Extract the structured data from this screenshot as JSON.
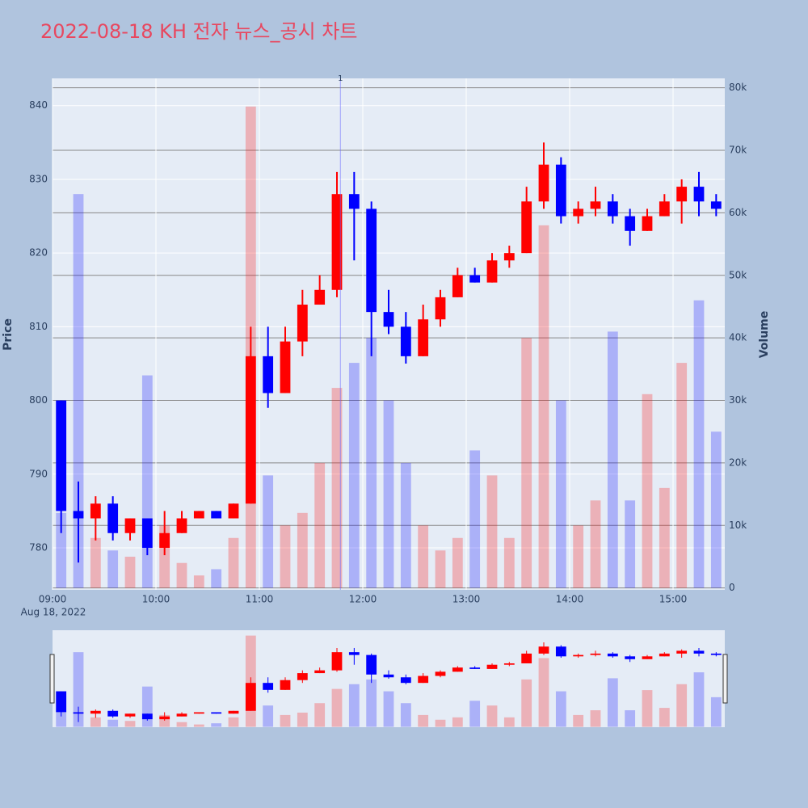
{
  "chart_data": {
    "type": "candlestick",
    "title": "2022-08-18 KH 전자 뉴스_공시 차트",
    "y_label": "Price",
    "y2_label": "Volume",
    "x_date_label": "Aug 18, 2022",
    "x": [
      "09:00",
      "09:10",
      "09:20",
      "09:30",
      "09:40",
      "09:50",
      "10:00",
      "10:10",
      "10:20",
      "10:30",
      "10:40",
      "10:50",
      "11:00",
      "11:10",
      "11:20",
      "11:30",
      "11:40",
      "11:50",
      "12:00",
      "12:10",
      "12:20",
      "12:30",
      "12:40",
      "12:50",
      "13:00",
      "13:10",
      "13:20",
      "13:30",
      "13:40",
      "13:50",
      "14:00",
      "14:10",
      "14:20",
      "14:30",
      "14:40",
      "14:50",
      "15:00",
      "15:10",
      "15:20"
    ],
    "open": [
      800,
      785,
      784,
      786,
      782,
      784,
      780,
      782,
      784,
      785,
      784,
      786,
      806,
      801,
      808,
      813,
      815,
      828,
      826,
      812,
      810,
      806,
      811,
      814,
      817,
      816,
      819,
      820,
      827,
      832,
      825,
      826,
      827,
      825,
      823,
      825,
      827,
      829,
      827
    ],
    "high": [
      800,
      789,
      787,
      787,
      784,
      784,
      785,
      785,
      785,
      785,
      786,
      810,
      810,
      810,
      815,
      817,
      831,
      831,
      827,
      815,
      812,
      813,
      815,
      818,
      818,
      820,
      821,
      829,
      835,
      833,
      827,
      829,
      828,
      826,
      826,
      828,
      830,
      831,
      828
    ],
    "low": [
      782,
      778,
      781,
      781,
      781,
      779,
      779,
      782,
      784,
      784,
      784,
      786,
      799,
      801,
      806,
      813,
      814,
      819,
      806,
      809,
      805,
      806,
      810,
      814,
      816,
      816,
      818,
      820,
      826,
      824,
      824,
      825,
      824,
      821,
      823,
      825,
      824,
      825,
      825
    ],
    "close": [
      785,
      784,
      786,
      782,
      784,
      780,
      782,
      784,
      785,
      784,
      786,
      806,
      801,
      808,
      813,
      815,
      828,
      826,
      812,
      810,
      806,
      811,
      814,
      817,
      816,
      819,
      820,
      827,
      832,
      825,
      826,
      827,
      825,
      823,
      825,
      827,
      829,
      827,
      826
    ],
    "volume": [
      12000,
      63000,
      8000,
      6000,
      5000,
      34000,
      10000,
      4000,
      2000,
      3000,
      8000,
      77000,
      18000,
      10000,
      12000,
      20000,
      32000,
      36000,
      40000,
      30000,
      20000,
      10000,
      6000,
      8000,
      22000,
      18000,
      8000,
      40000,
      58000,
      30000,
      10000,
      14000,
      41000,
      14000,
      31000,
      16000,
      36000,
      46000,
      25000
    ],
    "increasing_color": "#ff0000",
    "decreasing_color": "#0000ff",
    "xlim": [
      "09:00",
      "15:30"
    ],
    "xticks": [
      "09:00",
      "10:00",
      "11:00",
      "12:00",
      "13:00",
      "14:00",
      "15:00"
    ],
    "ylim": [
      774.3,
      843.7
    ],
    "yticks": [
      780,
      790,
      800,
      810,
      820,
      830,
      840
    ],
    "y2lim": [
      -300,
      81500
    ],
    "y2ticks": [
      0,
      {
        "value": 10000,
        "label": "10k"
      },
      {
        "value": 20000,
        "label": "20k"
      },
      {
        "value": 30000,
        "label": "30k"
      },
      {
        "value": 40000,
        "label": "40k"
      },
      {
        "value": 50000,
        "label": "50k"
      },
      {
        "value": 60000,
        "label": "60k"
      },
      {
        "value": 70000,
        "label": "70k"
      },
      {
        "value": 80000,
        "label": "80k"
      }
    ],
    "annotations": [
      {
        "x": "11:47",
        "text": "1"
      }
    ],
    "grid": true,
    "rangeslider": true
  }
}
